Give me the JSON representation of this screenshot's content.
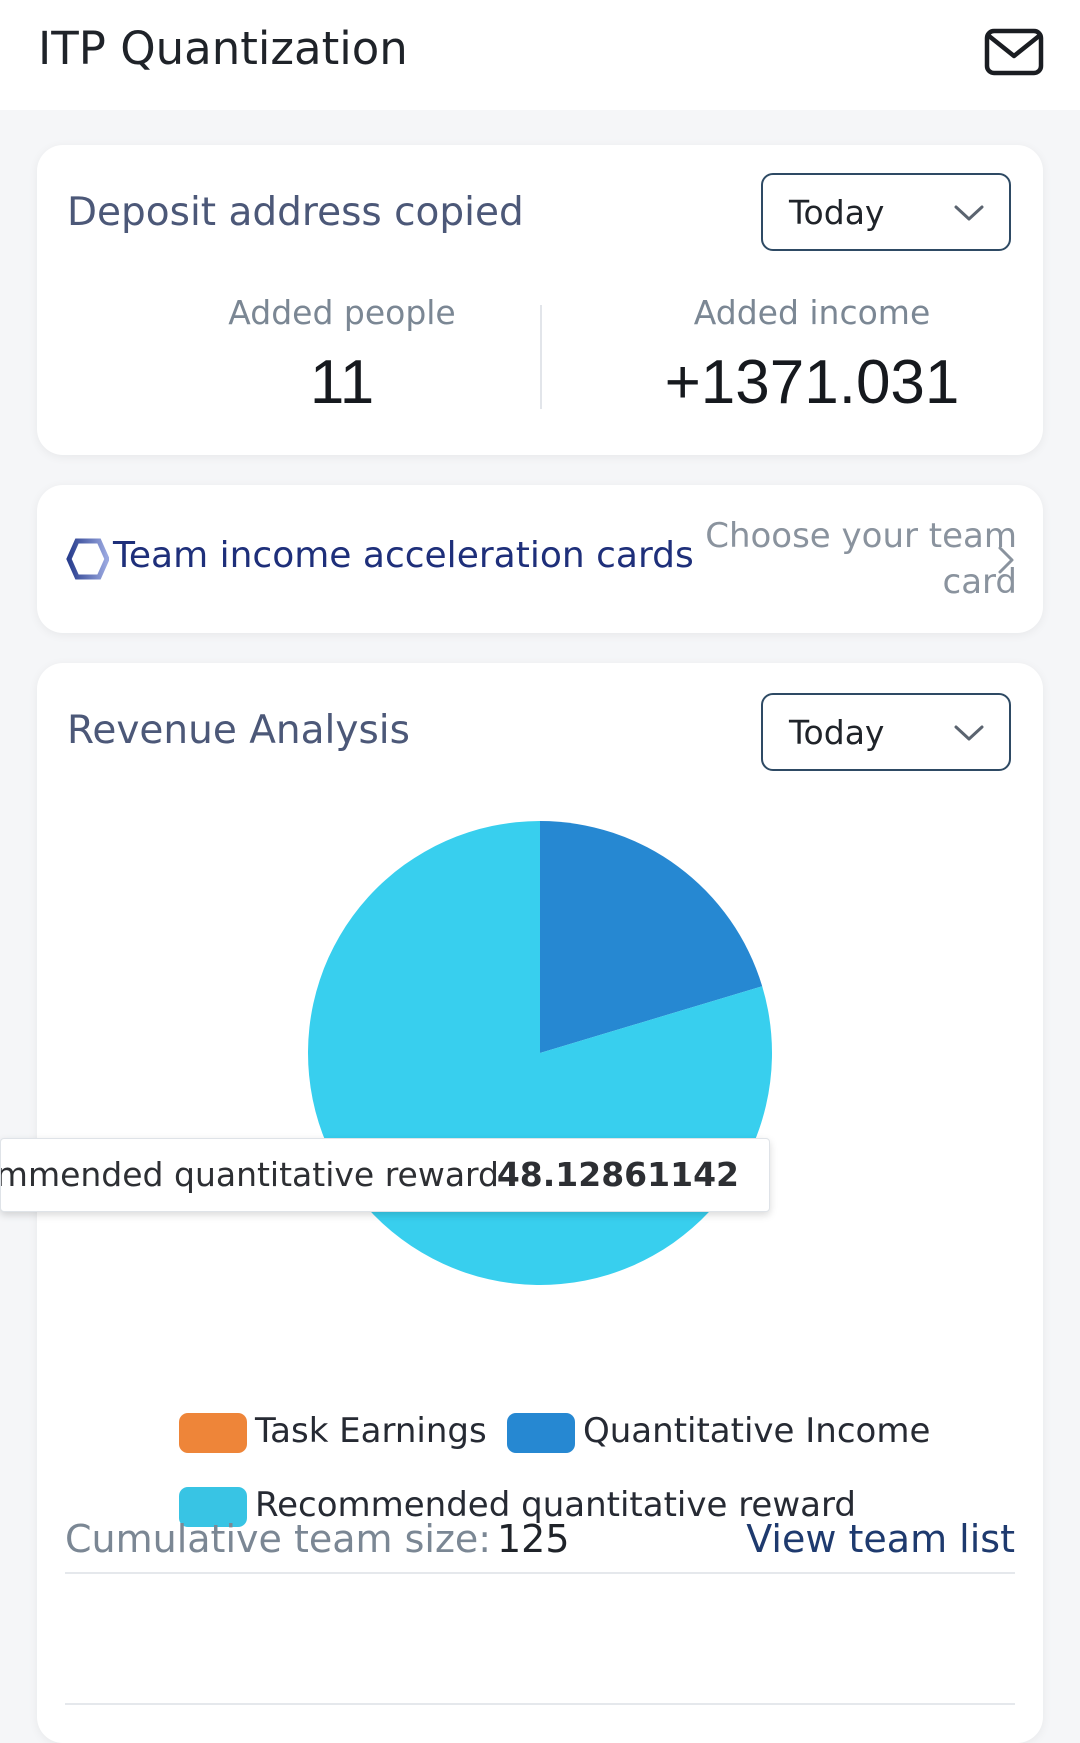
{
  "header": {
    "title": "ITP Quantization",
    "mail_icon": "mail-icon"
  },
  "summary": {
    "title": "Deposit address copied",
    "period": "Today",
    "added_people_label": "Added people",
    "added_people_value": "11",
    "added_income_label": "Added income",
    "added_income_value": "+1371.031"
  },
  "acceleration": {
    "label": "Team income acceleration cards",
    "action": "Choose your team card",
    "icon": "hexagon-icon"
  },
  "revenue": {
    "title": "Revenue Analysis",
    "period": "Today",
    "tooltip": {
      "name": "Recommended quantitative reward",
      "value": "48.12861142"
    }
  },
  "chart_data": {
    "type": "pie",
    "categories": [
      "Task Earnings",
      "Quantitative Income",
      "Recommended quantitative reward"
    ],
    "values": [
      0,
      12.3,
      48.12861142
    ],
    "colors": [
      "#ee8539",
      "#2688d2",
      "#38cfee"
    ],
    "legend_placement": "bottom"
  },
  "team": {
    "label": "Cumulative team size:",
    "value": "125",
    "link": "View team list"
  }
}
